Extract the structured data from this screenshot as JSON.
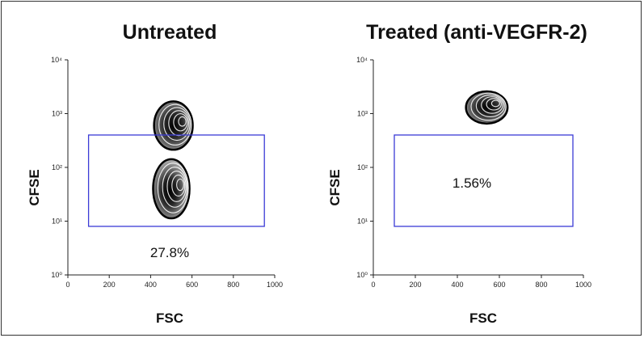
{
  "chart_data": [
    {
      "type": "contour",
      "title": "Untreated",
      "xlabel": "FSC",
      "ylabel": "CFSE",
      "xlim": [
        0,
        1000
      ],
      "ylim": [
        1,
        10000
      ],
      "y_scale": "log",
      "x_ticks": [
        "0",
        "200",
        "400",
        "600",
        "800",
        "1000"
      ],
      "y_ticks": [
        "10⁰",
        "10¹",
        "10²",
        "10³",
        "10⁴"
      ],
      "gate": {
        "x": [
          100,
          950
        ],
        "y": [
          8,
          400
        ],
        "percent": "27.8%",
        "color": "#3b3bd6"
      },
      "population": [
        {
          "name": "",
          "x": 510,
          "y": 600,
          "spread_x": 170,
          "spread_y_decades": 0.45
        },
        {
          "name": "",
          "x": 500,
          "y": 40,
          "spread_x": 160,
          "spread_y_decades": 0.55
        }
      ]
    },
    {
      "type": "contour",
      "title": "Treated (anti-VEGFR-2)",
      "xlabel": "FSC",
      "ylabel": "CFSE",
      "xlim": [
        0,
        1000
      ],
      "ylim": [
        1,
        10000
      ],
      "y_scale": "log",
      "x_ticks": [
        "0",
        "200",
        "400",
        "600",
        "800",
        "1000"
      ],
      "y_ticks": [
        "10⁰",
        "10¹",
        "10²",
        "10³",
        "10⁴"
      ],
      "gate": {
        "x": [
          100,
          950
        ],
        "y": [
          8,
          400
        ],
        "percent": "1.56%",
        "color": "#3b3bd6"
      },
      "population": [
        {
          "name": "",
          "x": 540,
          "y": 1300,
          "spread_x": 180,
          "spread_y_decades": 0.3
        }
      ]
    }
  ]
}
